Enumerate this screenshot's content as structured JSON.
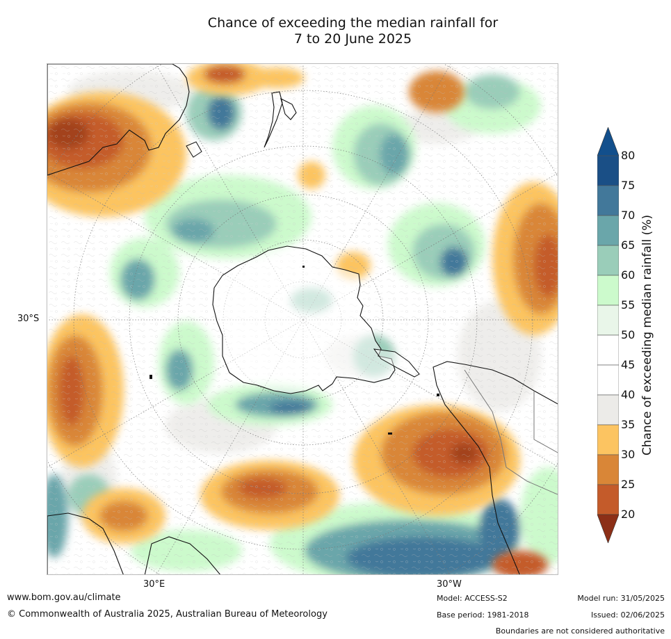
{
  "title": {
    "line1": "Chance of exceeding the median rainfall for",
    "line2": "7 to 20 June 2025"
  },
  "map": {
    "projection": "south-polar-stereographic",
    "lat_label": "30°S",
    "lon_label_east": "30°E",
    "lon_label_west": "30°W"
  },
  "colorbar": {
    "title": "Chance of exceeding median rainfall (%)",
    "ticks": [
      "20",
      "25",
      "30",
      "35",
      "40",
      "45",
      "50",
      "55",
      "60",
      "65",
      "70",
      "75",
      "80"
    ],
    "colors": [
      "#a3421e",
      "#c45b2a",
      "#d98637",
      "#fcc461",
      "#ecebe8",
      "#ffffff",
      "#ffffff",
      "#e9f6e9",
      "#ccfacc",
      "#9acdb9",
      "#6aa6aa",
      "#42789a",
      "#1a4f86"
    ],
    "under_color": "#8c2f17",
    "over_color": "#124f8c"
  },
  "footer": {
    "site": "www.bom.gov.au/climate",
    "copyright": "© Commonwealth of Australia 2025, Australian Bureau of Meteorology",
    "model": "Model: ACCESS-S2",
    "base_period": "Base period: 1981-2018",
    "model_run": "Model run: 31/05/2025",
    "issued": "Issued: 02/06/2025",
    "boundaries": "Boundaries are not considered authoritative"
  }
}
